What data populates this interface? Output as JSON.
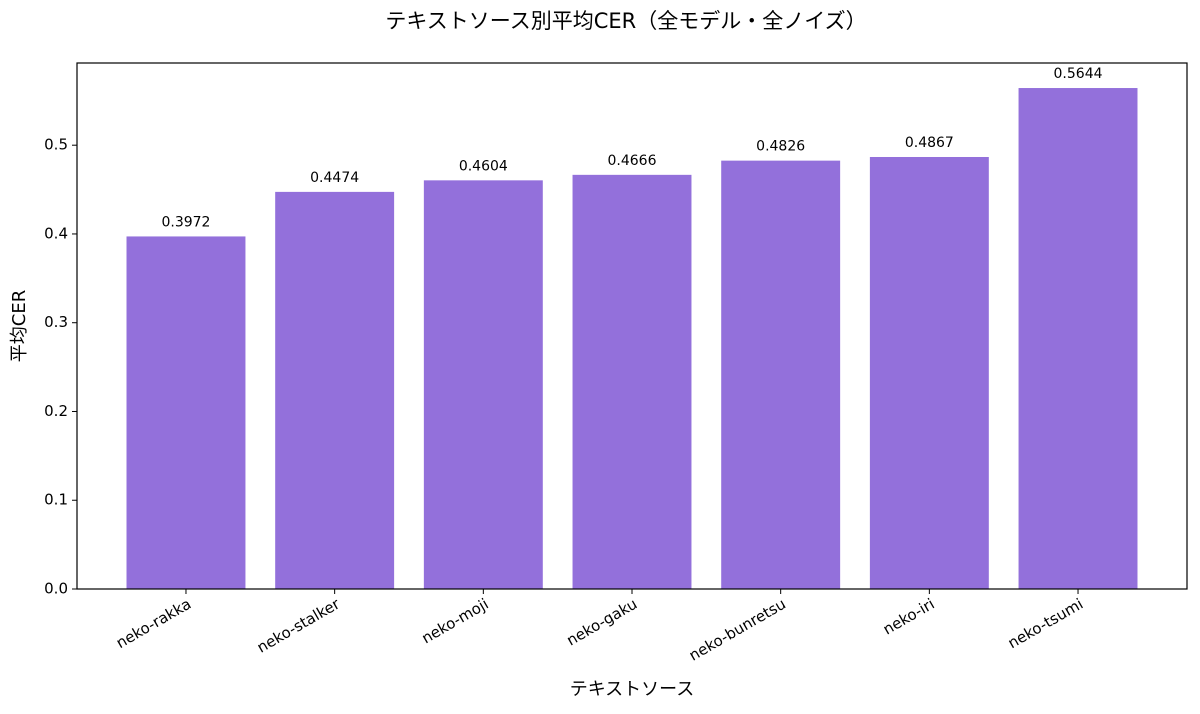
{
  "chart_data": {
    "type": "bar",
    "title": "テキストソース別平均CER（全モデル・全ノイズ）",
    "x_label": "テキストソース",
    "y_label": "平均CER",
    "categories": [
      "neko-rakka",
      "neko-stalker",
      "neko-moji",
      "neko-gaku",
      "neko-bunretsu",
      "neko-iri",
      "neko-tsumi"
    ],
    "values": [
      0.3972,
      0.4474,
      0.4604,
      0.4666,
      0.4826,
      0.4867,
      0.5644
    ],
    "color": "#9370db",
    "ylim": [
      0,
      0.5926
    ],
    "yticks": [
      {
        "value": 0,
        "label": "0.0"
      },
      0.1,
      0.2,
      0.3,
      0.4,
      0.5
    ],
    "grid": false
  }
}
